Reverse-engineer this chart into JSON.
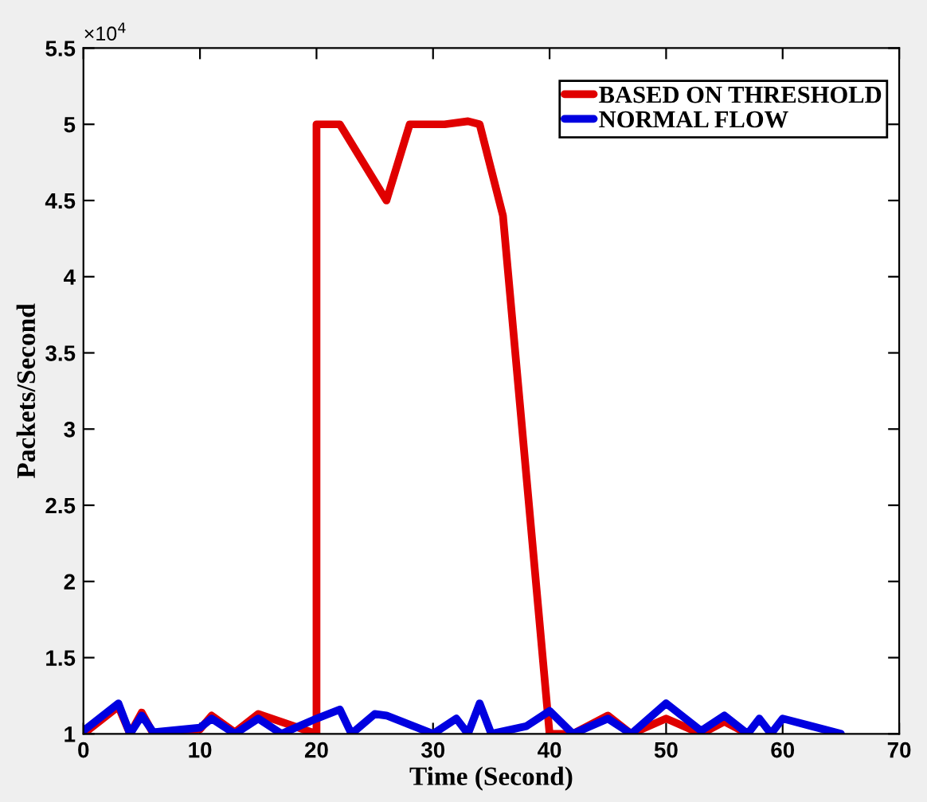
{
  "chart_data": {
    "type": "line",
    "xlabel": "Time (Second)",
    "ylabel": "Packets/Second",
    "annotations": [
      "×10$^{4}$"
    ],
    "xlim": [
      0,
      70
    ],
    "xticks": [
      0,
      10,
      20,
      30,
      40,
      50,
      60,
      70
    ],
    "ylim": [
      1,
      5.5
    ],
    "yticks": [
      1,
      1.5,
      2,
      2.5,
      3,
      3.5,
      4,
      4.5,
      5,
      5.5
    ],
    "legend": "top right",
    "grid": false,
    "marker": "none",
    "line_style": "solid",
    "series": [
      {
        "name": "BASED ON THRESHOLD",
        "color": "#e00000",
        "x": [
          0,
          3,
          4,
          5,
          6,
          10,
          11,
          13,
          15,
          20,
          20,
          22,
          26,
          28,
          31,
          33,
          34,
          36,
          40,
          42,
          45,
          47,
          50,
          53,
          55,
          57
        ],
        "values": [
          1.0,
          1.18,
          1.0,
          1.14,
          1.0,
          1.03,
          1.12,
          1.01,
          1.13,
          1.0,
          5.0,
          5.0,
          4.5,
          5.0,
          5.0,
          5.02,
          5.0,
          4.4,
          1.0,
          1.0,
          1.12,
          1.0,
          1.1,
          1.0,
          1.08,
          1.0
        ]
      },
      {
        "name": "NORMAL FLOW",
        "color": "#0000e0",
        "x": [
          0,
          3,
          4,
          5,
          6,
          10,
          11,
          13,
          15,
          17,
          20,
          22,
          23,
          25,
          26,
          30,
          32,
          33,
          34,
          35,
          38,
          40,
          42,
          45,
          47,
          50,
          53,
          55,
          57,
          58,
          59,
          60,
          65
        ],
        "values": [
          1.02,
          1.2,
          1.0,
          1.12,
          1.01,
          1.04,
          1.1,
          1.0,
          1.1,
          1.0,
          1.1,
          1.16,
          1.0,
          1.13,
          1.12,
          1.0,
          1.1,
          1.0,
          1.2,
          1.0,
          1.05,
          1.15,
          1.0,
          1.1,
          1.0,
          1.2,
          1.02,
          1.12,
          1.0,
          1.1,
          1.0,
          1.1,
          1.0
        ]
      }
    ]
  }
}
